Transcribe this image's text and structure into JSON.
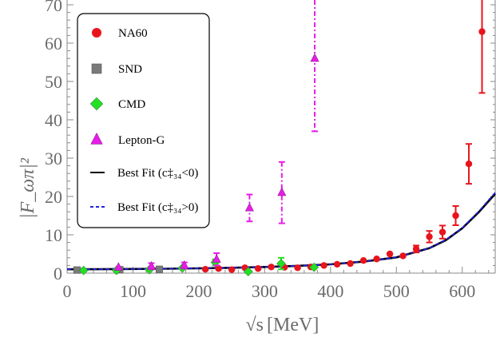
{
  "chart_data": {
    "type": "scatter",
    "xlabel_main": "√s",
    "xlabel_unit": "[MeV]",
    "ylabel": "|F_ωπ|²",
    "xlim": [
      0,
      650
    ],
    "ylim": [
      0,
      70
    ],
    "xticks": [
      "0",
      "100",
      "200",
      "300",
      "400",
      "500",
      "600"
    ],
    "yticks": [
      "0",
      "10",
      "20",
      "30",
      "40",
      "50",
      "60",
      "70"
    ],
    "legend_position": "top-left",
    "legend": [
      {
        "label": "NA60",
        "marker": "circle",
        "color": "#e8141c"
      },
      {
        "label": "SND",
        "marker": "square",
        "color": "#7a7a7a"
      },
      {
        "label": "CMD",
        "marker": "diamond",
        "color": "#22e022"
      },
      {
        "label": "Lepton-G",
        "marker": "triangle",
        "color": "#e81ce8"
      },
      {
        "label": "Best Fit (c‡₃₄<0)",
        "line": "solid",
        "color": "#000000"
      },
      {
        "label": "Best Fit (c‡₃₄>0)",
        "line": "dashed",
        "color": "#2020e0"
      }
    ],
    "series": [
      {
        "name": "NA60",
        "marker": "circle",
        "color": "#e8141c",
        "points": [
          {
            "x": 210,
            "y": 1.0,
            "lo": 0.5,
            "hi": 1.5
          },
          {
            "x": 230,
            "y": 1.2,
            "lo": 0.7,
            "hi": 1.7
          },
          {
            "x": 250,
            "y": 0.9,
            "lo": 0.4,
            "hi": 1.4
          },
          {
            "x": 270,
            "y": 1.4,
            "lo": 0.9,
            "hi": 1.9
          },
          {
            "x": 290,
            "y": 1.2,
            "lo": 0.7,
            "hi": 1.7
          },
          {
            "x": 310,
            "y": 1.6,
            "lo": 1.1,
            "hi": 2.1
          },
          {
            "x": 330,
            "y": 1.5,
            "lo": 1.0,
            "hi": 2.0
          },
          {
            "x": 350,
            "y": 1.4,
            "lo": 0.9,
            "hi": 1.9
          },
          {
            "x": 370,
            "y": 1.6,
            "lo": 1.1,
            "hi": 2.1
          },
          {
            "x": 390,
            "y": 2.0,
            "lo": 1.5,
            "hi": 2.5
          },
          {
            "x": 410,
            "y": 2.3,
            "lo": 1.8,
            "hi": 2.8
          },
          {
            "x": 430,
            "y": 2.5,
            "lo": 2.0,
            "hi": 3.0
          },
          {
            "x": 450,
            "y": 3.3,
            "lo": 2.7,
            "hi": 3.9
          },
          {
            "x": 470,
            "y": 3.7,
            "lo": 3.0,
            "hi": 4.4
          },
          {
            "x": 490,
            "y": 5.0,
            "lo": 4.3,
            "hi": 5.7
          },
          {
            "x": 510,
            "y": 4.5,
            "lo": 3.8,
            "hi": 5.2
          },
          {
            "x": 530,
            "y": 6.3,
            "lo": 5.4,
            "hi": 7.2
          },
          {
            "x": 550,
            "y": 9.5,
            "lo": 8.0,
            "hi": 11.0
          },
          {
            "x": 570,
            "y": 10.7,
            "lo": 9.0,
            "hi": 12.4
          },
          {
            "x": 590,
            "y": 15.0,
            "lo": 12.5,
            "hi": 17.5
          },
          {
            "x": 610,
            "y": 28.5,
            "lo": 23.3,
            "hi": 33.7
          },
          {
            "x": 630,
            "y": 63.0,
            "lo": 47.0,
            "hi": 79.0
          }
        ]
      },
      {
        "name": "SND",
        "marker": "square",
        "color": "#7a7a7a",
        "points": [
          {
            "x": 15,
            "y": 0.8,
            "lo": 0.5,
            "hi": 1.1
          },
          {
            "x": 80,
            "y": 0.9,
            "lo": 0.6,
            "hi": 1.2
          },
          {
            "x": 140,
            "y": 1.0,
            "lo": 0.7,
            "hi": 1.3
          }
        ]
      },
      {
        "name": "CMD",
        "marker": "diamond",
        "color": "#22e022",
        "points": [
          {
            "x": 25,
            "y": 0.7,
            "lo": 0.3,
            "hi": 1.1
          },
          {
            "x": 75,
            "y": 0.7,
            "lo": 0.3,
            "hi": 1.1
          },
          {
            "x": 125,
            "y": 0.9,
            "lo": 0.5,
            "hi": 1.3
          },
          {
            "x": 175,
            "y": 1.3,
            "lo": 0.8,
            "hi": 1.8
          },
          {
            "x": 225,
            "y": 2.8,
            "lo": 2.0,
            "hi": 3.6
          },
          {
            "x": 275,
            "y": 0.4,
            "lo": 0.0,
            "hi": 0.8
          },
          {
            "x": 325,
            "y": 2.5,
            "lo": 1.0,
            "hi": 4.0
          },
          {
            "x": 375,
            "y": 1.5,
            "lo": 0.8,
            "hi": 2.2
          }
        ]
      },
      {
        "name": "Lepton-G",
        "marker": "triangle",
        "color": "#e81ce8",
        "points": [
          {
            "x": 78,
            "y": 1.5,
            "lo": 0.8,
            "hi": 2.2
          },
          {
            "x": 128,
            "y": 1.8,
            "lo": 1.0,
            "hi": 2.6
          },
          {
            "x": 178,
            "y": 2.0,
            "lo": 1.2,
            "hi": 2.8
          },
          {
            "x": 227,
            "y": 3.6,
            "lo": 2.0,
            "hi": 5.2
          },
          {
            "x": 277,
            "y": 17.0,
            "lo": 13.5,
            "hi": 20.5
          },
          {
            "x": 326,
            "y": 21.0,
            "lo": 13.0,
            "hi": 29.0
          },
          {
            "x": 376,
            "y": 56.0,
            "lo": 37.0,
            "hi": 75.0
          }
        ]
      }
    ],
    "curves": [
      {
        "name": "Best Fit (c‡₃₄<0)",
        "color": "#000000",
        "style": "solid",
        "points": [
          [
            0,
            1.0
          ],
          [
            50,
            1.02
          ],
          [
            100,
            1.08
          ],
          [
            150,
            1.15
          ],
          [
            200,
            1.25
          ],
          [
            250,
            1.4
          ],
          [
            300,
            1.6
          ],
          [
            350,
            1.9
          ],
          [
            400,
            2.3
          ],
          [
            450,
            3.0
          ],
          [
            500,
            4.1
          ],
          [
            550,
            6.5
          ],
          [
            575,
            8.6
          ],
          [
            600,
            11.7
          ],
          [
            625,
            15.9
          ],
          [
            650,
            20.7
          ]
        ]
      },
      {
        "name": "Best Fit (c‡₃₄>0)",
        "color": "#2020e0",
        "style": "dashed",
        "points": [
          [
            0,
            1.0
          ],
          [
            50,
            1.02
          ],
          [
            100,
            1.08
          ],
          [
            150,
            1.15
          ],
          [
            200,
            1.25
          ],
          [
            250,
            1.4
          ],
          [
            300,
            1.6
          ],
          [
            350,
            1.9
          ],
          [
            400,
            2.3
          ],
          [
            450,
            3.0
          ],
          [
            500,
            4.1
          ],
          [
            550,
            6.5
          ],
          [
            575,
            8.7
          ],
          [
            600,
            11.8
          ],
          [
            625,
            16.1
          ],
          [
            650,
            21.0
          ]
        ]
      }
    ]
  }
}
